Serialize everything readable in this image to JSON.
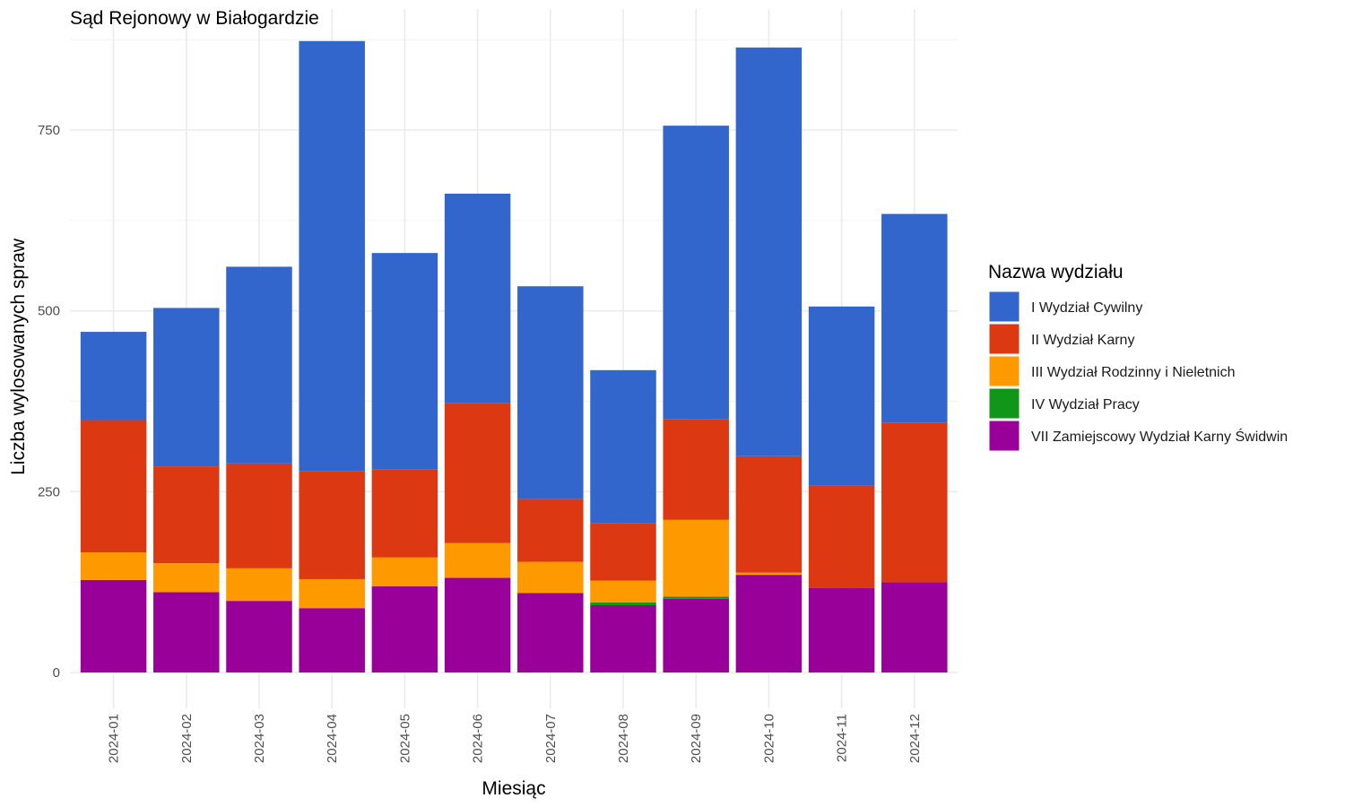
{
  "chart_data": {
    "type": "bar",
    "stacked": true,
    "title": "Sąd Rejonowy w Białogardzie",
    "xlabel": "Miesiąc",
    "ylabel": "Liczba wylosowanych spraw",
    "ylim": [
      0,
      870
    ],
    "yticks": [
      0,
      250,
      500,
      750
    ],
    "grid": true,
    "legend_title": "Nazwa wydziału",
    "legend_position": "right",
    "categories": [
      "2024-01",
      "2024-02",
      "2024-03",
      "2024-04",
      "2024-05",
      "2024-06",
      "2024-07",
      "2024-08",
      "2024-09",
      "2024-10",
      "2024-11",
      "2024-12"
    ],
    "series": [
      {
        "name": "VII Zamiejscowy Wydział Karny Świdwin",
        "color": "#990099",
        "values": [
          128,
          111,
          99,
          89,
          119,
          131,
          110,
          93,
          102,
          135,
          117,
          125
        ]
      },
      {
        "name": "IV Wydział Pracy",
        "color": "#109618",
        "values": [
          0,
          0,
          0,
          0,
          0,
          0,
          0,
          4,
          3,
          0,
          0,
          0
        ]
      },
      {
        "name": "III Wydział Rodzinny i Nieletnich",
        "color": "#FF9900",
        "values": [
          38,
          40,
          45,
          40,
          40,
          48,
          43,
          30,
          106,
          3,
          0,
          0
        ]
      },
      {
        "name": "II Wydział Karny",
        "color": "#DC3912",
        "values": [
          183,
          134,
          145,
          149,
          122,
          194,
          87,
          79,
          139,
          161,
          141,
          220
        ]
      },
      {
        "name": "I Wydział Cywilny",
        "color": "#3366CC",
        "values": [
          122,
          219,
          272,
          595,
          299,
          289,
          294,
          212,
          406,
          565,
          248,
          289
        ]
      }
    ],
    "legend_order": [
      "I Wydział Cywilny",
      "II Wydział Karny",
      "III Wydział Rodzinny i Nieletnich",
      "IV Wydział Pracy",
      "VII Zamiejscowy Wydział Karny Świdwin"
    ]
  }
}
